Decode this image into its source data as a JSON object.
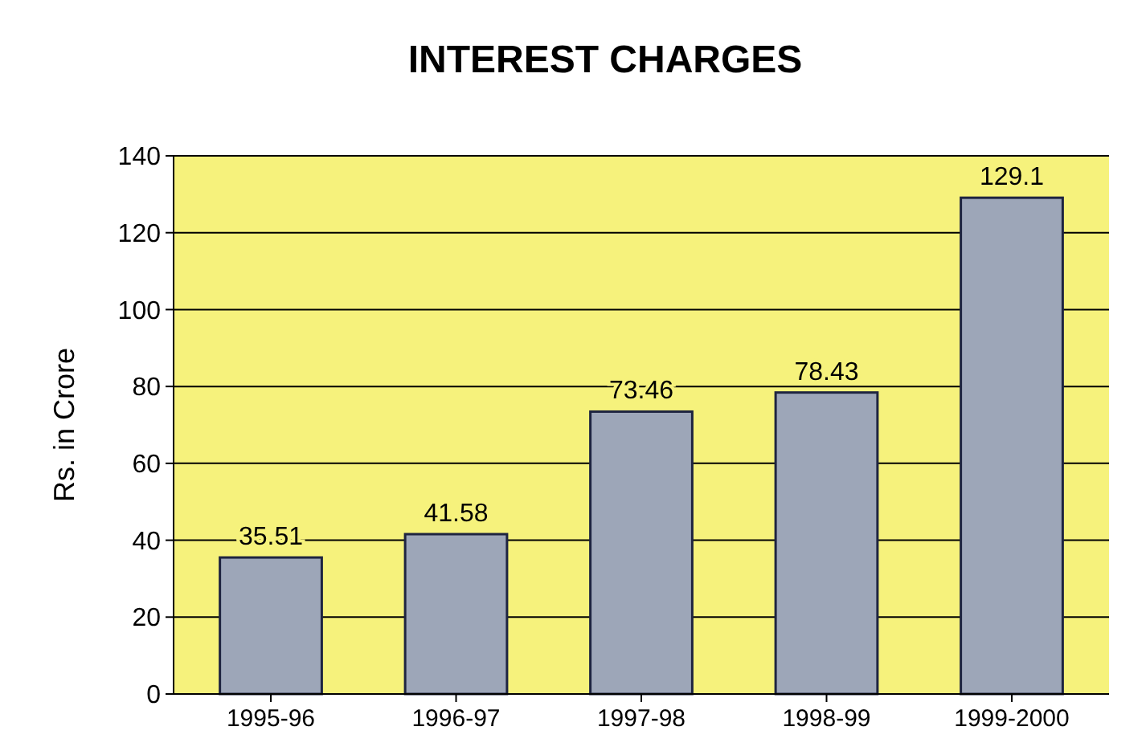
{
  "chart_data": {
    "type": "bar",
    "title": "INTEREST CHARGES",
    "ylabel": "Rs. in Crore",
    "categories": [
      "1995-96",
      "1996-97",
      "1997-98",
      "1998-99",
      "1999-2000"
    ],
    "values": [
      35.51,
      41.58,
      73.46,
      78.43,
      129.1
    ],
    "value_labels": [
      "35.51",
      "41.58",
      "73.46",
      "78.43",
      "129.1"
    ],
    "color": "#9da6b8",
    "ylim": [
      0,
      140
    ],
    "yticks": [
      0,
      20,
      40,
      60,
      80,
      100,
      120,
      140
    ],
    "grid": "y"
  }
}
